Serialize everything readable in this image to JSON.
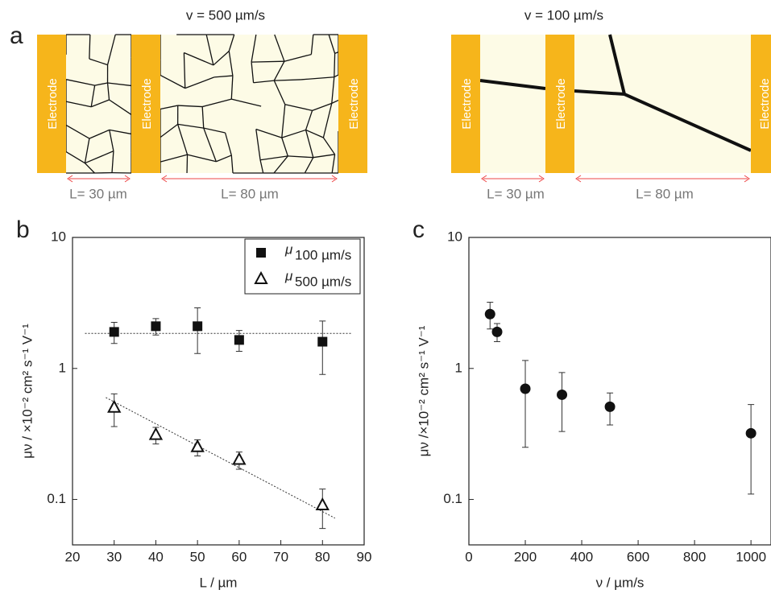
{
  "schematic": {
    "panel_label": "a",
    "panels": [
      {
        "title": "v = 500 µm/s",
        "electrode": "Electrode",
        "gaps": [
          "L= 30 µm",
          "L= 80 µm"
        ]
      },
      {
        "title": "v = 100 µm/s",
        "electrode": "Electrode",
        "gaps": [
          "L= 30 µm",
          "L= 80 µm"
        ]
      }
    ]
  },
  "chart_data": [
    {
      "type": "scatter",
      "panel_label": "b",
      "x_label": "L / µm",
      "y_label": "μν / ×10⁻² cm² s⁻¹ V⁻¹",
      "xlim": [
        20,
        90
      ],
      "xticks": [
        20,
        30,
        40,
        50,
        60,
        70,
        80,
        90
      ],
      "ylim": [
        0.045,
        10
      ],
      "yticks": [
        0.1,
        1,
        10
      ],
      "y_scale": "log",
      "legend": "top-right",
      "series": [
        {
          "name": "μ",
          "subscript": "100 µm/s",
          "marker": "square",
          "color": "#111111",
          "x": [
            30,
            40,
            50,
            60,
            80
          ],
          "values": [
            1.9,
            2.1,
            2.1,
            1.65,
            1.6
          ],
          "errors": [
            0.35,
            0.3,
            0.8,
            0.3,
            0.7
          ]
        },
        {
          "name": "μ",
          "subscript": "500 µm/s",
          "marker": "triangle",
          "color": "#111111",
          "x": [
            30,
            40,
            50,
            60,
            80
          ],
          "values": [
            0.5,
            0.31,
            0.25,
            0.2,
            0.09
          ],
          "errors": [
            0.14,
            0.045,
            0.035,
            0.03,
            0.03
          ]
        }
      ],
      "fit_lines": [
        {
          "x": [
            23,
            87
          ],
          "values": [
            1.85,
            1.85
          ]
        },
        {
          "x": [
            28,
            83
          ],
          "values": [
            0.6,
            0.072
          ]
        }
      ]
    },
    {
      "type": "scatter",
      "panel_label": "c",
      "x_label": "ν / µm/s",
      "y_label": "μν /×10⁻² cm² s⁻¹ V⁻¹",
      "xlim": [
        0,
        1071
      ],
      "xticks": [
        0,
        200,
        400,
        600,
        800,
        1000
      ],
      "ylim": [
        0.045,
        10
      ],
      "yticks": [
        0.1,
        1,
        10
      ],
      "y_scale": "log",
      "series": [
        {
          "marker": "circle",
          "color": "#111111",
          "x": [
            75,
            100,
            200,
            330,
            500,
            1000
          ],
          "values": [
            2.6,
            1.9,
            0.7,
            0.63,
            0.51,
            0.32
          ],
          "errors": [
            0.6,
            0.3,
            0.45,
            0.3,
            0.14,
            0.21
          ]
        }
      ]
    }
  ]
}
